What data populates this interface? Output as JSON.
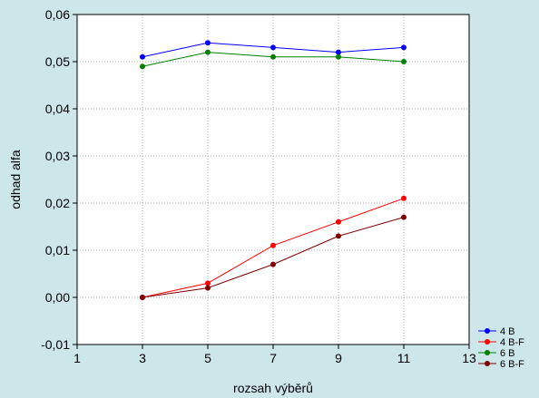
{
  "chart_data": {
    "type": "line",
    "xlabel": "rozsah výběrů",
    "ylabel": "odhad alfa",
    "xlim": [
      1,
      13
    ],
    "ylim": [
      -0.01,
      0.06
    ],
    "x_ticks": [
      "1",
      "3",
      "5",
      "7",
      "9",
      "11",
      "13"
    ],
    "y_ticks": [
      "-0,01",
      "0,00",
      "0,01",
      "0,02",
      "0,03",
      "0,04",
      "0,05",
      "0,06"
    ],
    "grid": true,
    "legend_position": "bottom-right",
    "x": [
      3,
      5,
      7,
      9,
      11
    ],
    "series": [
      {
        "name": "4 B",
        "color": "#0000ff",
        "values": [
          0.051,
          0.054,
          0.053,
          0.052,
          0.053
        ]
      },
      {
        "name": "4 B-F",
        "color": "#ff0000",
        "values": [
          0.0,
          0.003,
          0.011,
          0.016,
          0.021
        ]
      },
      {
        "name": "6 B",
        "color": "#008000",
        "values": [
          0.049,
          0.052,
          0.051,
          0.051,
          0.05
        ]
      },
      {
        "name": "6 B-F",
        "color": "#800000",
        "values": [
          0.0,
          0.002,
          0.007,
          0.013,
          0.017
        ]
      }
    ]
  },
  "colors": {
    "page_background": "#cce6ea",
    "plot_background": "#ffffff",
    "grid": "#b0b0b0"
  }
}
